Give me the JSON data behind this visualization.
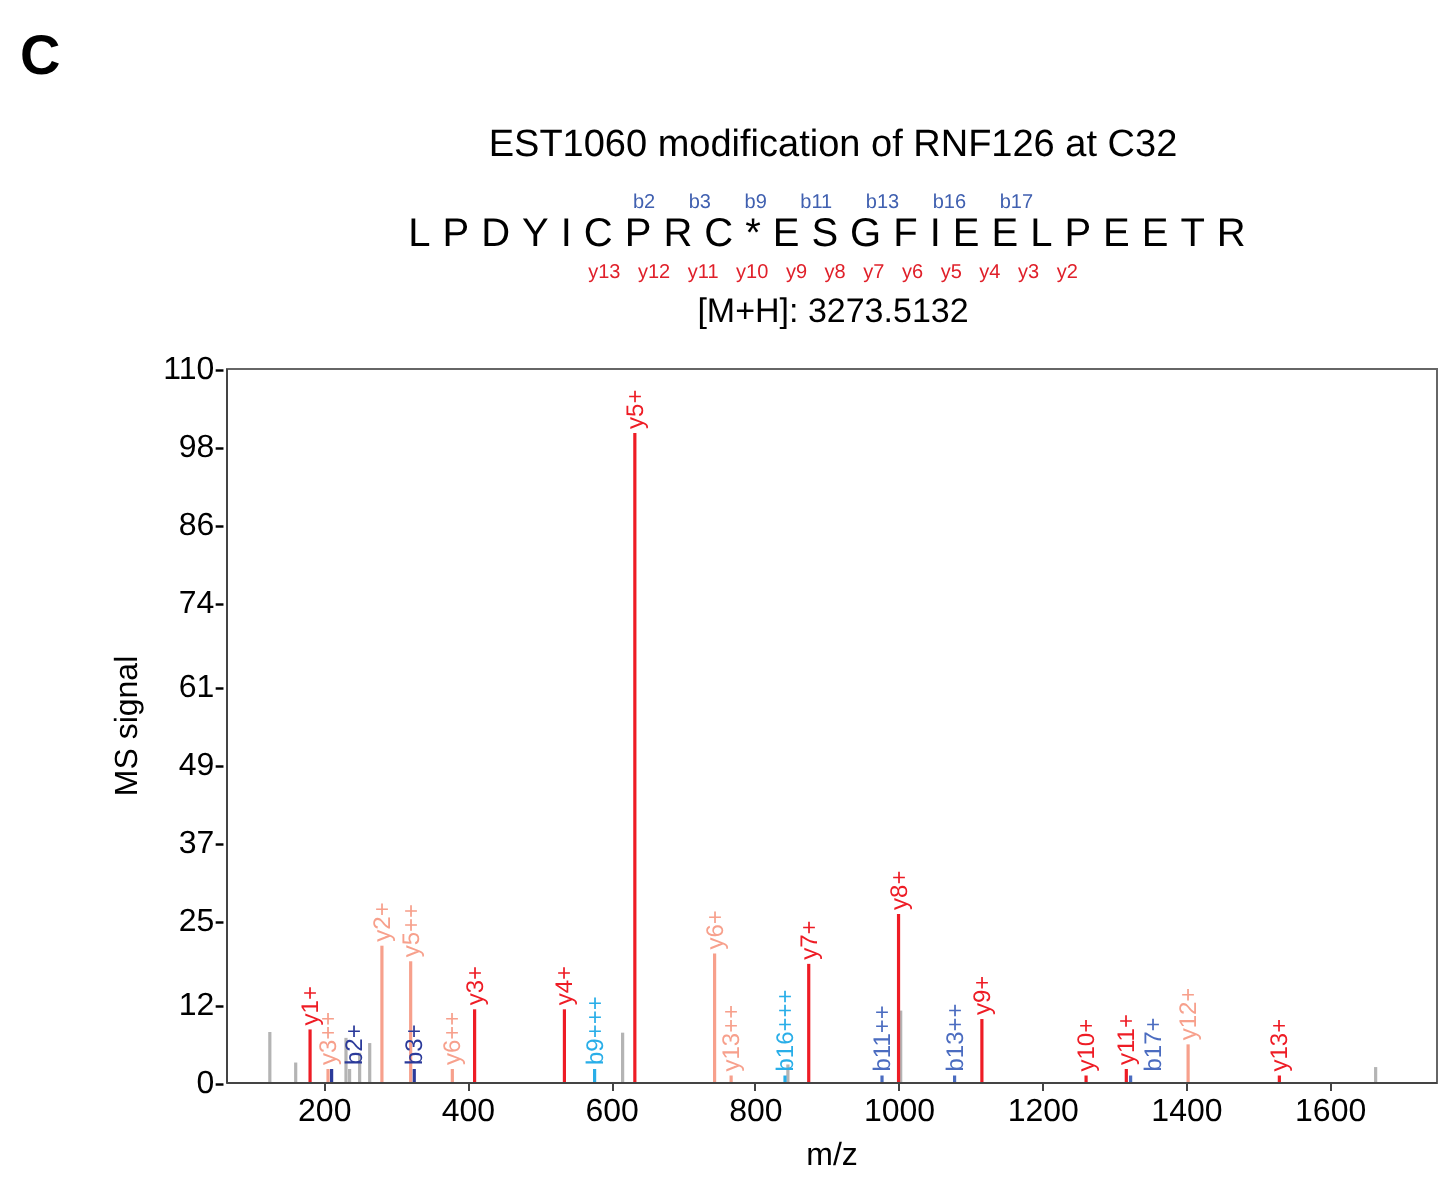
{
  "chart_data": {
    "type": "bar",
    "title": "EST1060 modification of RNF126 at C32",
    "subtitle": "LPDYICPRC*ESGFIEELPEETR",
    "xlabel": "m/z",
    "ylabel": "MS signal",
    "xlim": [
      64,
      1748
    ],
    "xticks": [
      200,
      400,
      600,
      800,
      1000,
      1200,
      1400,
      1600
    ],
    "ylim": [
      0,
      110
    ],
    "yticks": [
      {
        "value": 0,
        "label": "0-"
      },
      {
        "value": 12,
        "label": "12-"
      },
      {
        "value": 25,
        "label": "25-"
      },
      {
        "value": 37,
        "label": "37-"
      },
      {
        "value": 49,
        "label": "49-"
      },
      {
        "value": 61,
        "label": "61-"
      },
      {
        "value": 74,
        "label": "74-"
      },
      {
        "value": 86,
        "label": "86-"
      },
      {
        "value": 98,
        "label": "98-"
      },
      {
        "value": 110,
        "label": "110-"
      }
    ],
    "grid": false,
    "series": [
      {
        "color": "#b4b4b4",
        "x": [
          125,
          161,
          231,
          236,
          250,
          264,
          616,
          846,
          1003,
          1664
        ],
        "values": [
          7.7,
          3,
          6.8,
          2,
          4.5,
          6,
          7.6,
          2.7,
          11,
          2.3
        ]
      },
      {
        "color": "#ee1c25",
        "x": [
          181,
          410,
          535,
          633,
          875,
          1000,
          1116,
          1261,
          1317,
          1530
        ],
        "values": [
          8.1,
          11.2,
          11.2,
          100,
          18.2,
          25.9,
          9.7,
          1,
          2,
          1
        ]
      },
      {
        "color": "#f7a08c",
        "x": [
          206,
          281,
          321,
          379,
          744,
          767,
          1403
        ],
        "values": [
          2,
          21,
          18.6,
          2,
          19.8,
          1,
          5.8
        ]
      },
      {
        "color": "#2b3a9a",
        "x": [
          211,
          326
        ],
        "values": [
          2,
          2
        ]
      },
      {
        "color": "#4b6cc0",
        "x": [
          977,
          1078,
          1323
        ],
        "values": [
          1,
          1,
          1
        ]
      },
      {
        "color": "#29aee8",
        "x": [
          577,
          842
        ],
        "values": [
          2,
          1
        ]
      }
    ],
    "annotations": [
      "C",
      "b2 b3 b9 b11 b13 b16 b17",
      "y13 y12 y11 y10 y9 y8 y7 y6 y5 y4 y3 y2",
      "[M+H]: 3273.5132",
      {
        "text": "y1+",
        "x": 181,
        "y": 8.1
      },
      {
        "text": "y3+",
        "x": 410,
        "y": 11.2
      },
      {
        "text": "y4+",
        "x": 535,
        "y": 11.2
      },
      {
        "text": "y5+",
        "x": 633,
        "y": 100
      },
      {
        "text": "y7+",
        "x": 875,
        "y": 18.2
      },
      {
        "text": "y8+",
        "x": 1000,
        "y": 25.9
      },
      {
        "text": "y9+",
        "x": 1116,
        "y": 9.7
      },
      {
        "text": "y10+",
        "x": 1261,
        "y": 1
      },
      {
        "text": "y11+",
        "x": 1317,
        "y": 2
      },
      {
        "text": "y13+",
        "x": 1530,
        "y": 1
      },
      {
        "text": "y2+",
        "x": 281,
        "y": 21
      },
      {
        "text": "y5++",
        "x": 321,
        "y": 18.6
      },
      {
        "text": "y3++",
        "x": 206,
        "y": 2
      },
      {
        "text": "y6++",
        "x": 379,
        "y": 2
      },
      {
        "text": "y6+",
        "x": 744,
        "y": 19.8
      },
      {
        "text": "y13++",
        "x": 767,
        "y": 1
      },
      {
        "text": "y12+",
        "x": 1403,
        "y": 5.8
      },
      {
        "text": "b2+",
        "x": 211,
        "y": 2
      },
      {
        "text": "b3+",
        "x": 326,
        "y": 2
      },
      {
        "text": "b11++",
        "x": 977,
        "y": 1
      },
      {
        "text": "b13++",
        "x": 1078,
        "y": 1
      },
      {
        "text": "b17+",
        "x": 1323,
        "y": 1
      },
      {
        "text": "b9+++",
        "x": 577,
        "y": 2
      },
      {
        "text": "b16+++",
        "x": 842,
        "y": 1
      }
    ]
  }
}
